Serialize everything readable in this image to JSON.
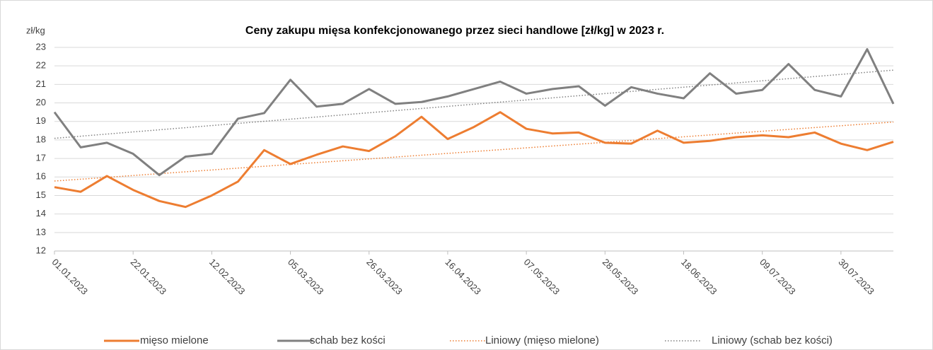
{
  "chart_data": {
    "type": "line",
    "title": "Ceny zakupu mięsa konfekcjonowanego przez sieci handlowe [zł/kg]  w 2023 r.",
    "ylabel": "zł/kg",
    "categories": [
      "01.01.2023",
      null,
      null,
      "22.01.2023",
      null,
      null,
      "12.02.2023",
      null,
      null,
      "05.03.2023",
      null,
      null,
      "26.03.2023",
      null,
      null,
      "16.04.2023",
      null,
      null,
      "07.05.2023",
      null,
      null,
      "28.05.2023",
      null,
      null,
      "18.06.2023",
      null,
      null,
      "09.07.2023",
      null,
      null,
      "30.07.2023",
      null,
      null
    ],
    "series": [
      {
        "name": "mięso mielone",
        "color": "#ed7d31",
        "values": [
          15.45,
          15.2,
          16.05,
          15.3,
          14.7,
          14.38,
          15.0,
          15.75,
          17.45,
          16.7,
          17.2,
          17.65,
          17.4,
          18.2,
          19.25,
          18.05,
          18.7,
          19.5,
          18.6,
          18.35,
          18.4,
          17.85,
          17.8,
          18.5,
          17.85,
          17.95,
          18.15,
          18.25,
          18.15,
          18.4,
          17.8,
          17.45,
          17.9
        ],
        "trendline": {
          "name": "Liniowy (mięso mielone)",
          "color": "#ed7d31"
        }
      },
      {
        "name": "schab bez kości",
        "color": "#808080",
        "values": [
          19.5,
          17.6,
          17.85,
          17.25,
          16.1,
          17.1,
          17.25,
          19.15,
          19.45,
          21.25,
          19.8,
          19.95,
          20.75,
          19.95,
          20.05,
          20.35,
          20.75,
          21.15,
          20.5,
          20.75,
          20.9,
          19.85,
          20.85,
          20.5,
          20.25,
          21.6,
          20.5,
          20.7,
          22.1,
          20.7,
          20.35,
          22.9,
          19.95
        ],
        "trendline": {
          "name": "Liniowy (schab bez kości)",
          "color": "#808080"
        }
      }
    ],
    "ylim": [
      12,
      23
    ],
    "yticks": [
      12,
      13,
      14,
      15,
      16,
      17,
      18,
      19,
      20,
      21,
      22,
      23
    ],
    "grid": true,
    "legend": "bottom"
  }
}
